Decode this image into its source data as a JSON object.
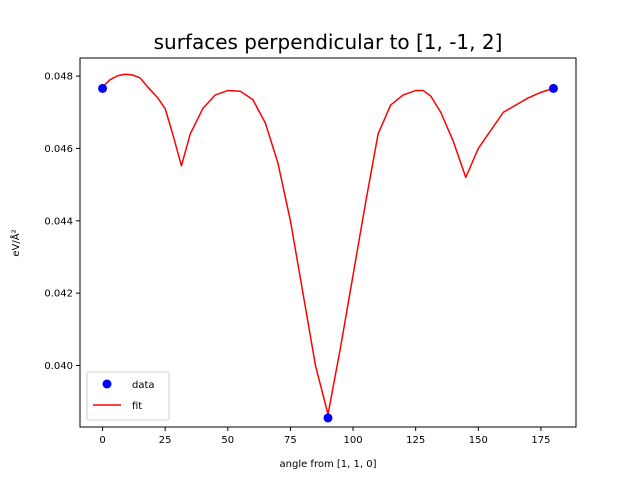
{
  "chart_data": {
    "type": "line",
    "title": "surfaces perpendicular to [1, -1, 2]",
    "xlabel": "angle from [1, 1, 0]",
    "ylabel": "eV/Å²",
    "xlim": [
      -9,
      189
    ],
    "ylim": [
      0.0383,
      0.0485
    ],
    "xticks": [
      0,
      25,
      50,
      75,
      100,
      125,
      150,
      175
    ],
    "xtick_labels": [
      "0",
      "25",
      "50",
      "75",
      "100",
      "125",
      "150",
      "175"
    ],
    "yticks": [
      0.04,
      0.042,
      0.044,
      0.046,
      0.048
    ],
    "ytick_labels": [
      "0.040",
      "0.042",
      "0.044",
      "0.046",
      "0.048"
    ],
    "grid": false,
    "legend": {
      "placement": "lower-left",
      "entries": [
        "data",
        "fit"
      ]
    },
    "series": [
      {
        "name": "data",
        "kind": "scatter",
        "color": "#0000ff",
        "x": [
          0,
          90,
          180
        ],
        "y": [
          0.04766,
          0.03855,
          0.04766
        ]
      },
      {
        "name": "fit",
        "kind": "line",
        "color": "#ff0000",
        "x": [
          0,
          3,
          6,
          9,
          12,
          15,
          18,
          22,
          25,
          28,
          31.5,
          35,
          40,
          45,
          50,
          55,
          60,
          65,
          70,
          75,
          80,
          85,
          90,
          95,
          100,
          105,
          110,
          115,
          120,
          125,
          128,
          131,
          135,
          140,
          145,
          150,
          155,
          160,
          165,
          170,
          175,
          180
        ],
        "y": [
          0.0477,
          0.0479,
          0.04801,
          0.04805,
          0.04803,
          0.04795,
          0.0477,
          0.0474,
          0.0471,
          0.0464,
          0.04552,
          0.0464,
          0.0471,
          0.04748,
          0.0476,
          0.04758,
          0.04735,
          0.0467,
          0.0456,
          0.044,
          0.042,
          0.04,
          0.03865,
          0.0405,
          0.0425,
          0.0445,
          0.0464,
          0.0472,
          0.04748,
          0.0476,
          0.0476,
          0.04745,
          0.047,
          0.0462,
          0.0452,
          0.046,
          0.0465,
          0.047,
          0.0472,
          0.0474,
          0.04755,
          0.04766
        ]
      }
    ]
  }
}
